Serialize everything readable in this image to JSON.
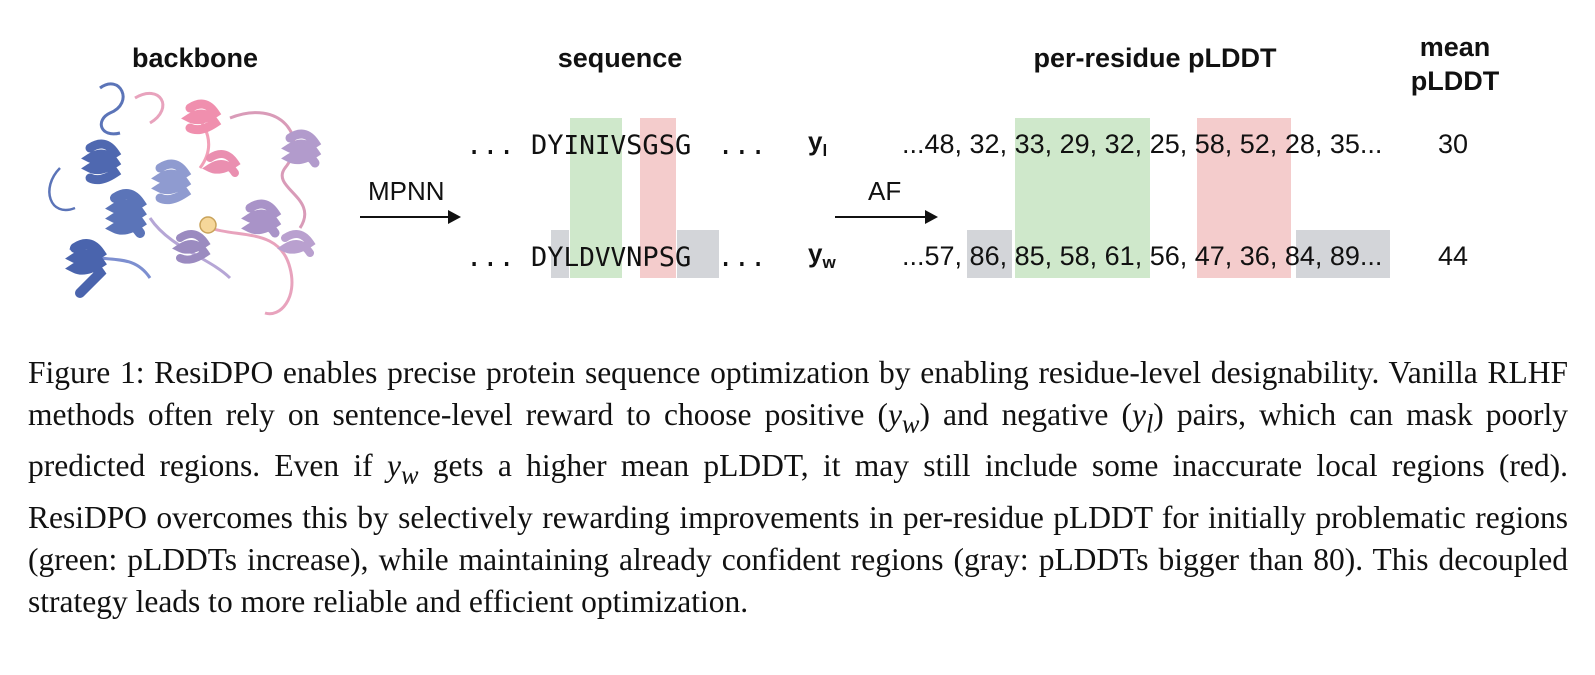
{
  "figure": {
    "headers": {
      "backbone": "backbone",
      "sequence": "sequence",
      "per_residue": "per-residue pLDDT",
      "mean_line1": "mean",
      "mean_line2": "pLDDT"
    },
    "arrows": {
      "mpnn": "MPNN",
      "af": "AF"
    },
    "rows": {
      "yl": {
        "label_main": "y",
        "label_sub": "l",
        "seq_prefix": "... DY",
        "seq_green": "INIV",
        "seq_red": "SG",
        "seq_end": "SG",
        "seq_suffix": " ...",
        "plddt_a": "...48, 32, ",
        "plddt_green": "33, 29, 32,",
        "plddt_b": " 25, ",
        "plddt_red": "58, 52,",
        "plddt_c": " 28, 35...",
        "mean": "30"
      },
      "yw": {
        "label_main": "y",
        "label_sub": "w",
        "seq_prefix": "... D",
        "seq_gray1": "Y",
        "seq_green": "LDVV",
        "seq_red": "NP",
        "seq_gray2": "SG",
        "seq_suffix": " ...",
        "plddt_a": "...57, ",
        "plddt_gray1": "86,",
        "plddt_green": " 85, 58, 61,",
        "plddt_b": " 56, ",
        "plddt_red": "47, 36,",
        "plddt_gray2": " 84, 89...",
        "mean": "44"
      }
    },
    "colors": {
      "green": "#cfe8cb",
      "red": "#f4cccc",
      "gray": "#d3d5d9",
      "protein_blue": "#5b74b8",
      "protein_purple": "#9b8bc0",
      "protein_pink": "#e8a3bd"
    }
  },
  "caption": {
    "p1": "Figure 1: ResiDPO enables precise protein sequence optimization by enabling residue-level designability. Vanilla RLHF methods often rely on sentence-level reward to choose positive (",
    "yw1": "y",
    "yw1_sub": "w",
    "p2": ") and negative (",
    "yl1": "y",
    "yl1_sub": "l",
    "p3": ") pairs, which can mask poorly predicted regions. Even if ",
    "yw2": "y",
    "yw2_sub": "w",
    "p4": " gets a higher mean pLDDT, it may still include some inaccurate local regions (red). ResiDPO overcomes this by selectively rewarding improvements in per-residue pLDDT for initially problematic regions (green: pLDDTs increase), while maintaining already confident regions (gray: pLDDTs bigger than 80). This decoupled strategy leads to more reliable and efficient optimization."
  }
}
